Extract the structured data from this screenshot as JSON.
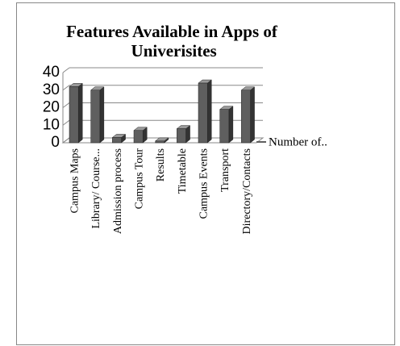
{
  "chart_data": {
    "type": "bar3d",
    "title": "Features Available in Apps of Univerisites",
    "categories": [
      "Campus Maps",
      "Library/ Course...",
      "Admission process",
      "Campus Tour",
      "Results",
      "Timetable",
      "Campus Events",
      "Transport",
      "Directory/Contacts"
    ],
    "series": [
      {
        "name": "Number of..",
        "color": "#5f5f5f",
        "values": [
          32,
          30,
          3,
          7,
          1,
          8,
          34,
          19,
          30
        ]
      }
    ],
    "ylim": [
      0,
      40
    ],
    "yticks": [
      0,
      10,
      20,
      30,
      40
    ],
    "grid": true,
    "legend": "right"
  }
}
